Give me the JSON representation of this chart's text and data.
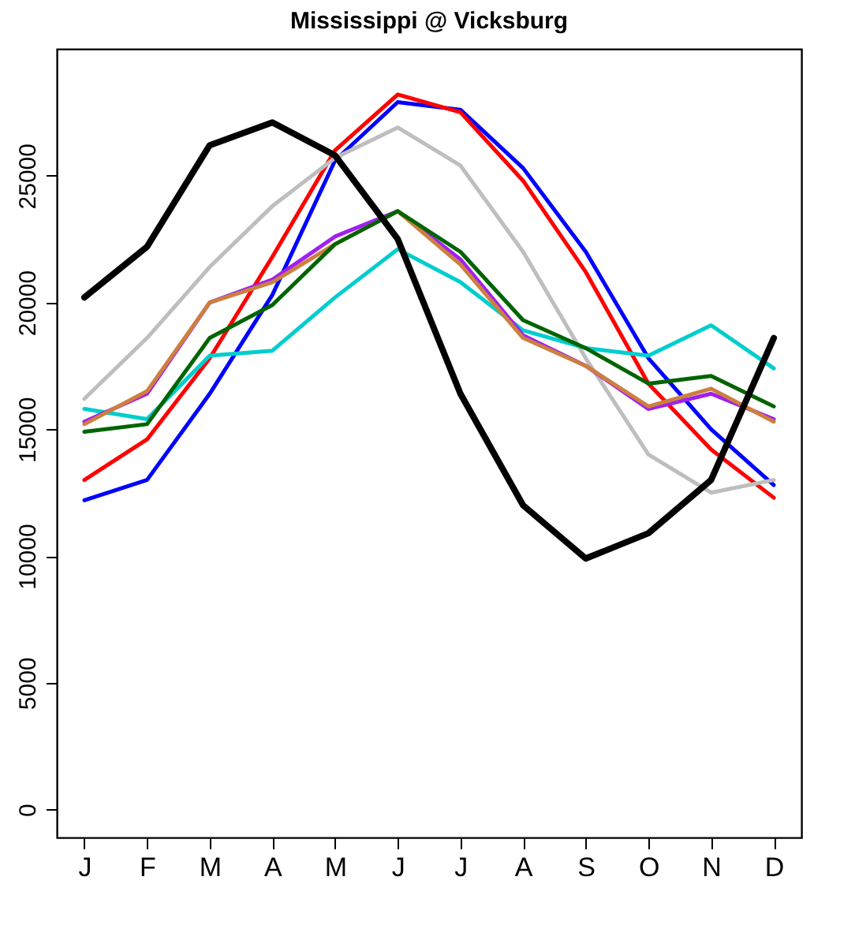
{
  "chart_data": {
    "type": "line",
    "title": "Mississippi @ Vicksburg",
    "categories": [
      "J",
      "F",
      "M",
      "A",
      "M",
      "J",
      "J",
      "A",
      "S",
      "O",
      "N",
      "D"
    ],
    "ylim": [
      -1100,
      30000
    ],
    "yticks": [
      0,
      5000,
      10000,
      15000,
      20000,
      25000
    ],
    "grid": false,
    "legend": false,
    "series": [
      {
        "color": "#0000ff",
        "values": [
          12200,
          13000,
          16400,
          20300,
          25600,
          27900,
          27600,
          25300,
          22000,
          17800,
          15000,
          12800
        ]
      },
      {
        "color": "#ff0000",
        "values": [
          13000,
          14600,
          17800,
          21800,
          26000,
          28200,
          27500,
          24800,
          21200,
          16800,
          14200,
          12300
        ]
      },
      {
        "color": "#bebebe",
        "values": [
          16200,
          18600,
          21400,
          23800,
          25700,
          26900,
          25400,
          22000,
          17800,
          14000,
          12500,
          13000
        ]
      },
      {
        "color": "#00cdcd",
        "values": [
          15800,
          15400,
          17900,
          18100,
          20200,
          22100,
          20800,
          18900,
          18200,
          17900,
          19100,
          17400
        ]
      },
      {
        "color": "#a020f0",
        "values": [
          15300,
          16400,
          20000,
          20900,
          22600,
          23600,
          21700,
          18700,
          17500,
          15800,
          16400,
          15400
        ]
      },
      {
        "color": "#cd7f3f",
        "values": [
          15200,
          16500,
          20000,
          20800,
          22300,
          23600,
          21500,
          18600,
          17500,
          15900,
          16600,
          15300
        ]
      },
      {
        "color": "#006400",
        "values": [
          14900,
          15200,
          18600,
          19900,
          22300,
          23600,
          22000,
          19300,
          18200,
          16800,
          17100,
          15900
        ]
      },
      {
        "color": "#000000",
        "values": [
          20200,
          22200,
          26200,
          27100,
          25800,
          22500,
          16400,
          12000,
          9900,
          10900,
          13000,
          18600
        ]
      }
    ]
  }
}
